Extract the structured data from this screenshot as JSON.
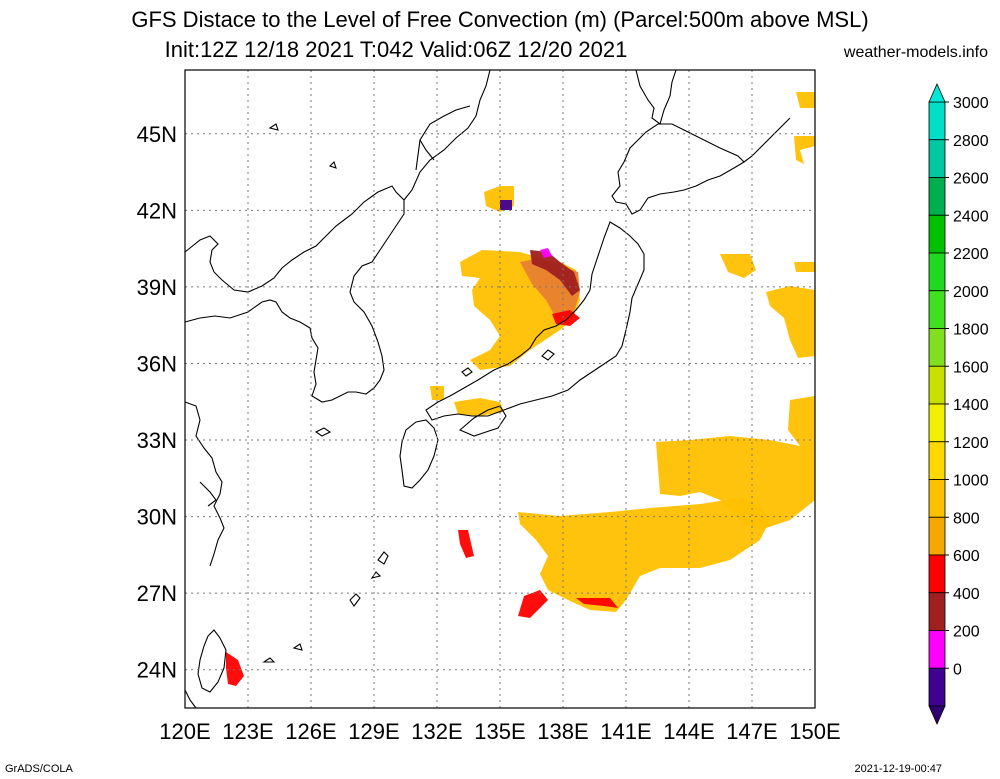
{
  "header": {
    "title_line1": "GFS Distace to the Level of Free Convection (m) (Parcel:500m above MSL)",
    "title_line2": "Init:12Z 12/18 2021 T:042 Valid:06Z 12/20 2021",
    "site": "weather-models.info"
  },
  "footer": {
    "software": "GrADS/COLA",
    "timestamp": "2021-12-19-00:47"
  },
  "map": {
    "lon_range": [
      120,
      150
    ],
    "lat_range": [
      22.5,
      47.5
    ],
    "lon_labels": [
      "120E",
      "123E",
      "126E",
      "129E",
      "132E",
      "135E",
      "138E",
      "141E",
      "144E",
      "147E",
      "150E"
    ],
    "lat_labels": [
      {
        "lat": 45,
        "label": "45N"
      },
      {
        "lat": 42,
        "label": "42N"
      },
      {
        "lat": 39,
        "label": "39N"
      },
      {
        "lat": 36,
        "label": "36N"
      },
      {
        "lat": 33,
        "label": "33N"
      },
      {
        "lat": 30,
        "label": "30N"
      },
      {
        "lat": 27,
        "label": "27N"
      },
      {
        "lat": 24,
        "label": "24N"
      }
    ],
    "grid": "dotted"
  },
  "colorbar": {
    "labels": [
      "3000",
      "2800",
      "2600",
      "2400",
      "2200",
      "2000",
      "1800",
      "1600",
      "1400",
      "1200",
      "1000",
      "800",
      "600",
      "400",
      "200",
      "0"
    ],
    "colors": [
      "#00e0c8",
      "#00c8a0",
      "#00b050",
      "#00c000",
      "#20d820",
      "#40e020",
      "#80e020",
      "#c8e000",
      "#f0f000",
      "#ffd800",
      "#ffc000",
      "#f5a800",
      "#ff0000",
      "#a02020",
      "#ff00ff",
      "#400090"
    ],
    "top_color": "#00e8d8",
    "bottom_color": "#300070"
  }
}
